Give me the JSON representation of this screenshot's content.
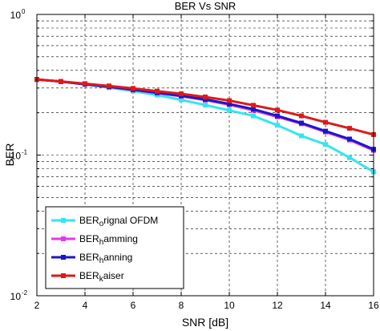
{
  "chart_data": {
    "type": "line",
    "title": "BER Vs SNR",
    "xlabel": "SNR [dB]",
    "ylabel": "BER",
    "x": [
      2,
      3,
      4,
      5,
      6,
      7,
      8,
      9,
      10,
      11,
      12,
      13,
      14,
      15,
      16
    ],
    "xlim": [
      2,
      16
    ],
    "xticks": [
      "2",
      "4",
      "6",
      "8",
      "10",
      "12",
      "14",
      "16"
    ],
    "ylim": [
      0.01,
      1
    ],
    "yscale": "log",
    "yticks": [
      {
        "base": "10",
        "exp": "0"
      },
      {
        "base": "10",
        "exp": "-1"
      },
      {
        "base": "10",
        "exp": "-2"
      }
    ],
    "grid": true,
    "legend": {
      "position": "bottom-left"
    },
    "series": [
      {
        "name_parts": [
          "BER",
          "o",
          "rignal OFDM"
        ],
        "color": "#33e6ee",
        "values": [
          0.345,
          0.333,
          0.318,
          0.302,
          0.285,
          0.267,
          0.247,
          0.227,
          0.208,
          0.19,
          0.163,
          0.137,
          0.119,
          0.096,
          0.076
        ]
      },
      {
        "name_parts": [
          "BER",
          "h",
          "amming"
        ],
        "color": "#e339e8",
        "values": [
          0.345,
          0.333,
          0.319,
          0.305,
          0.29,
          0.276,
          0.262,
          0.246,
          0.228,
          0.208,
          0.187,
          0.167,
          0.146,
          0.128,
          0.108
        ]
      },
      {
        "name_parts": [
          "BER",
          "h",
          "anning"
        ],
        "color": "#1a17c9",
        "values": [
          0.345,
          0.333,
          0.319,
          0.306,
          0.292,
          0.278,
          0.264,
          0.249,
          0.231,
          0.212,
          0.19,
          0.169,
          0.148,
          0.13,
          0.11
        ]
      },
      {
        "name_parts": [
          "BER",
          "k",
          "aiser"
        ],
        "color": "#dd1a1a",
        "values": [
          0.345,
          0.334,
          0.322,
          0.31,
          0.298,
          0.285,
          0.273,
          0.259,
          0.244,
          0.226,
          0.209,
          0.19,
          0.171,
          0.155,
          0.14
        ]
      }
    ]
  }
}
